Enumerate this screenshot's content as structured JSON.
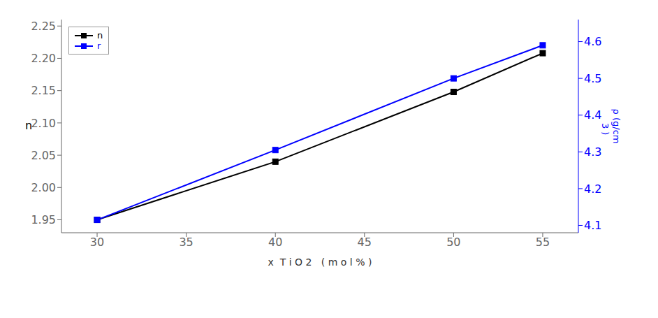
{
  "chart_data": {
    "type": "line",
    "xlabel": "x  T i O 2   ( m o l % )",
    "ylabel": "n",
    "y2label": "ρ (g/cm\n  3 )",
    "x": [
      30,
      40,
      50,
      55
    ],
    "series": [
      {
        "name": "n",
        "color": "black",
        "values": [
          1.95,
          2.04,
          2.148,
          2.208
        ],
        "marker": "square",
        "line_style": "solid"
      },
      {
        "name": "r",
        "color": "blue",
        "values": [
          4.115,
          4.305,
          4.5,
          4.59
        ],
        "axis": "y2",
        "marker": "square",
        "line_style": "solid"
      }
    ],
    "xlim": [
      28,
      57
    ],
    "xticks": [
      30,
      35,
      40,
      45,
      50,
      55
    ],
    "ylim": [
      1.93,
      2.26
    ],
    "yticks": [
      1.95,
      {
        "value": 2.0,
        "label": "2.00"
      },
      2.05,
      {
        "value": 2.1,
        "label": "2.10"
      },
      2.15,
      {
        "value": 2.2,
        "label": "2.20"
      },
      2.25
    ],
    "y2lim": [
      4.08,
      4.66
    ],
    "y2ticks": [
      4.1,
      4.2,
      4.3,
      4.4,
      4.5,
      4.6
    ],
    "grid": false,
    "legend": "upper left"
  }
}
